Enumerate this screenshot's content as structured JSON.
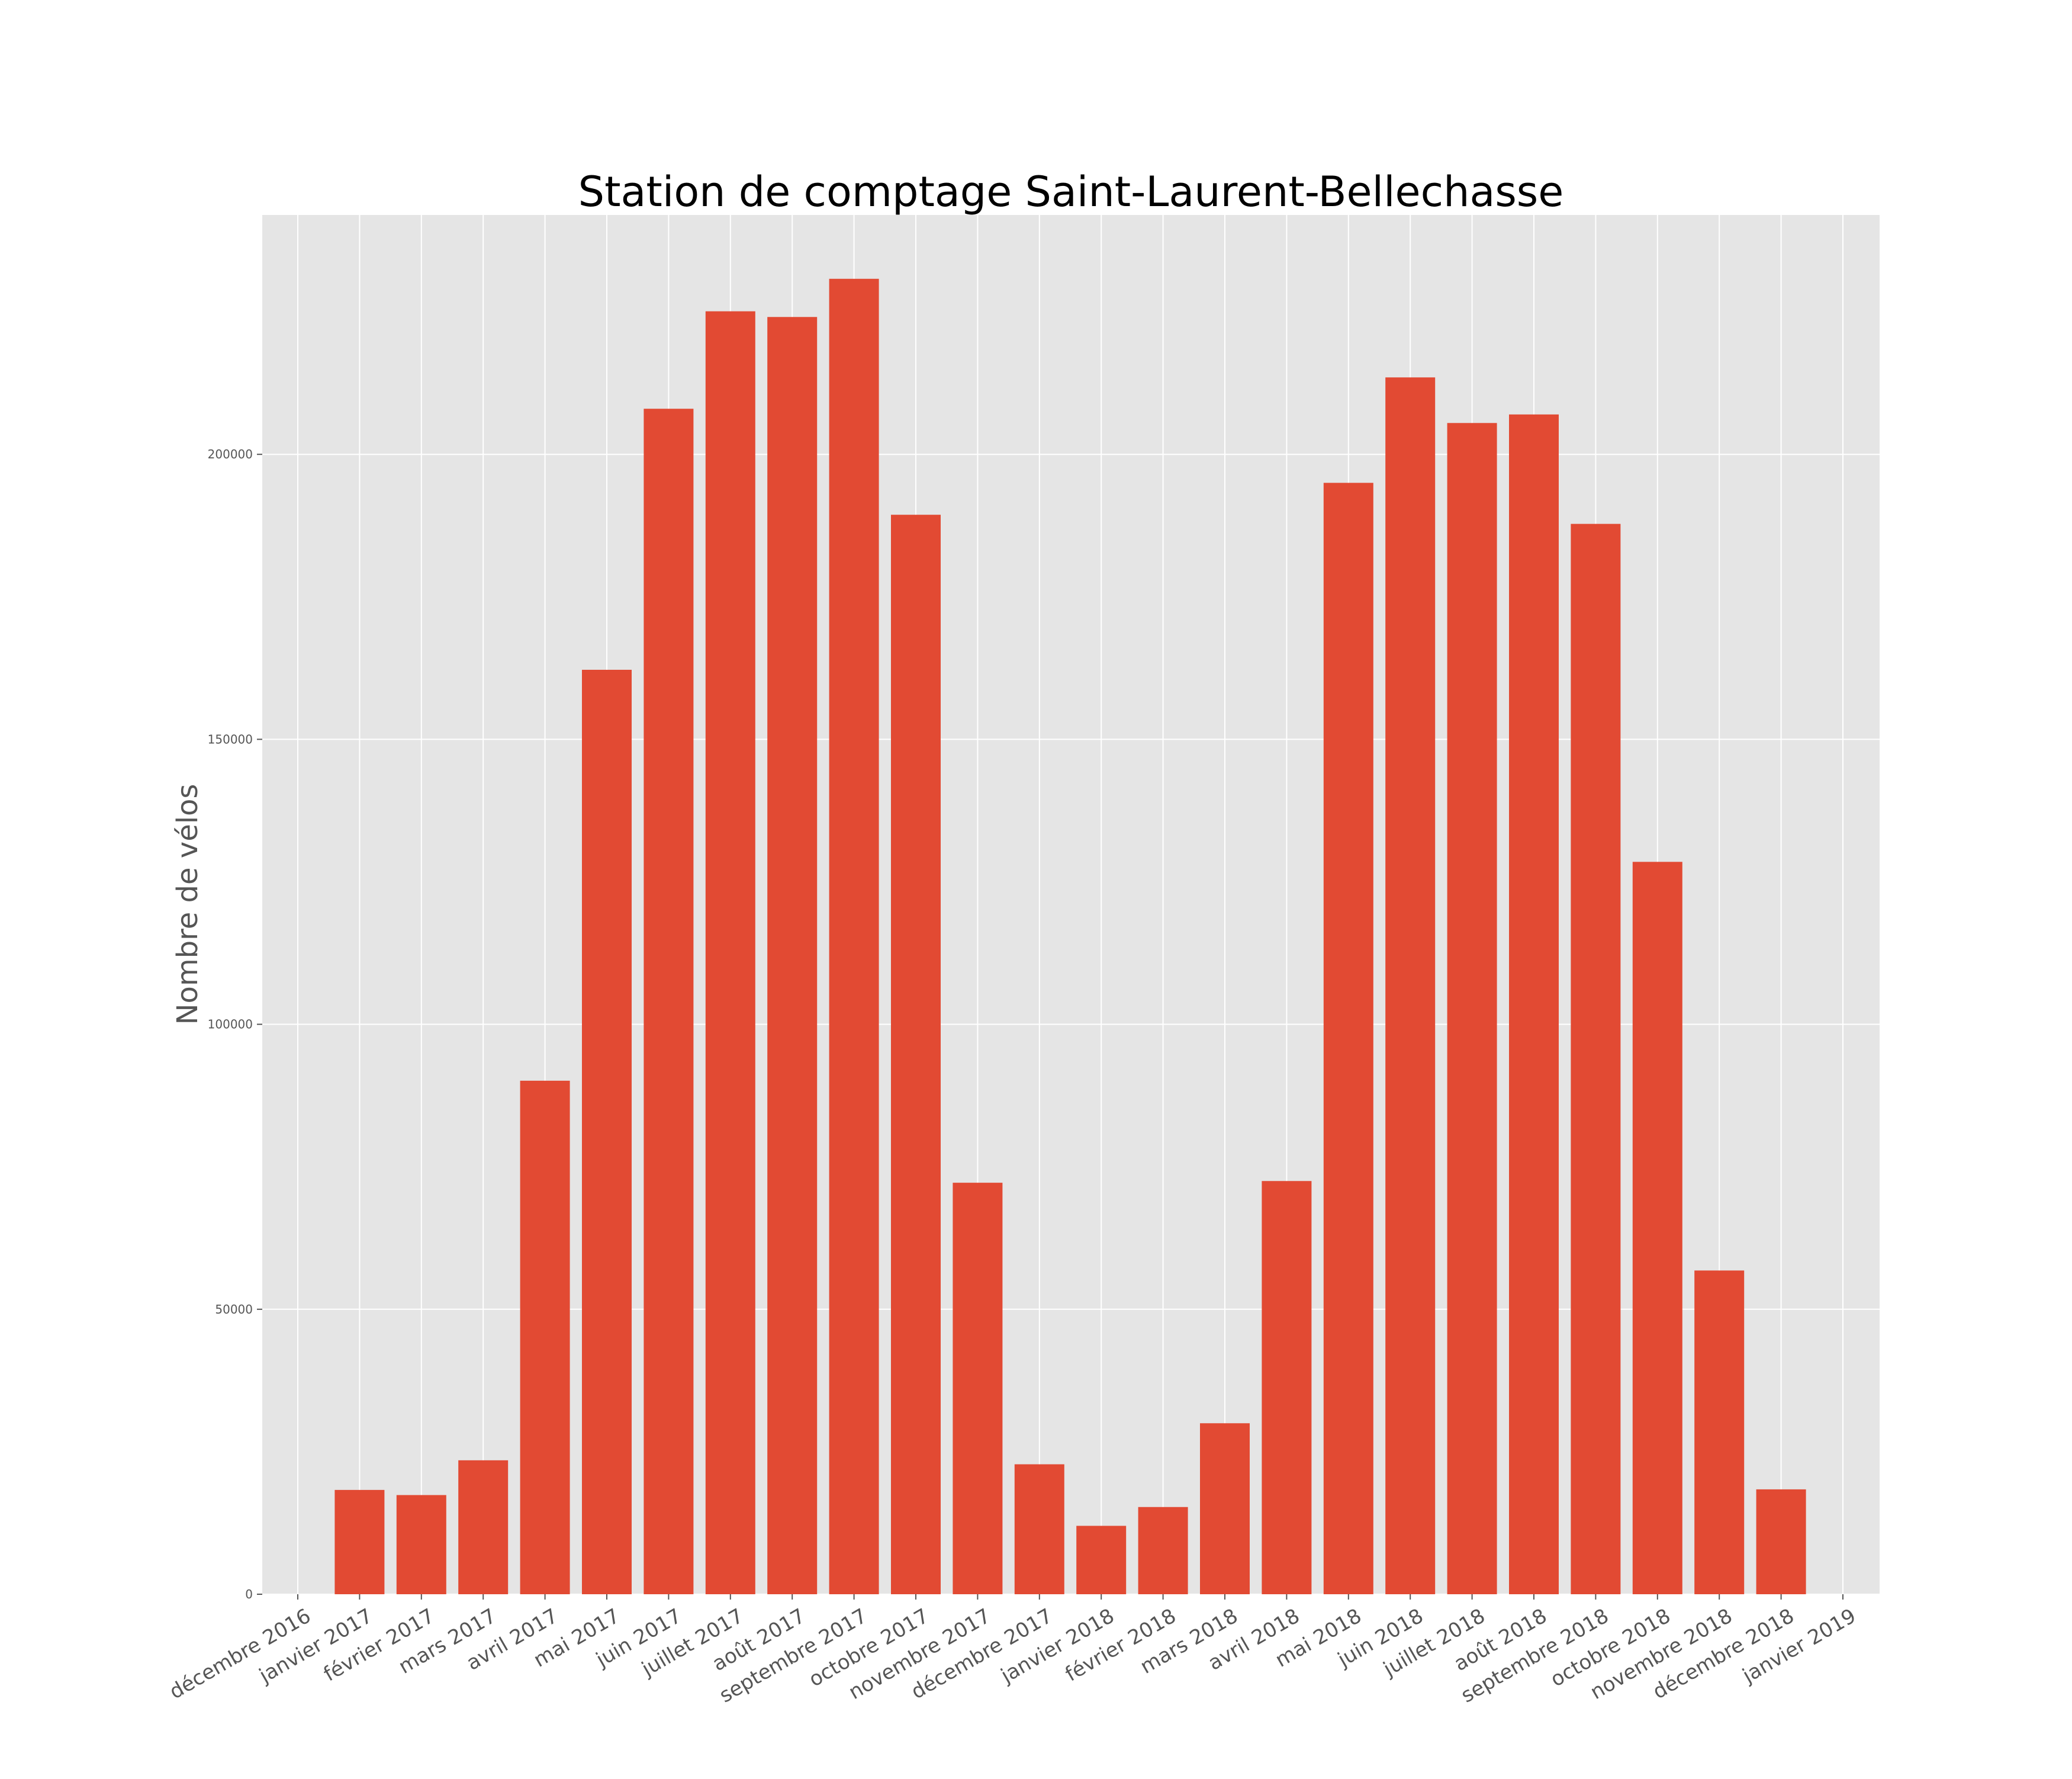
{
  "chart_data": {
    "type": "bar",
    "title": "Station de comptage Saint-Laurent-Bellechasse",
    "xlabel": "",
    "ylabel": "Nombre de vélos",
    "categories": [
      "décembre 2016",
      "janvier 2017",
      "février 2017",
      "mars 2017",
      "avril 2017",
      "mai 2017",
      "juin 2017",
      "juillet 2017",
      "août 2017",
      "septembre 2017",
      "octobre 2017",
      "novembre 2017",
      "décembre 2017",
      "janvier 2018",
      "février 2018",
      "mars 2018",
      "avril 2018",
      "mai 2018",
      "juin 2018",
      "juillet 2018",
      "août 2018",
      "septembre 2018",
      "octobre 2018",
      "novembre 2018",
      "décembre 2018",
      "janvier 2019"
    ],
    "values": [
      null,
      18300,
      17400,
      23500,
      90100,
      162200,
      208000,
      225100,
      224100,
      230800,
      189400,
      72200,
      22800,
      12000,
      15300,
      30000,
      72500,
      195000,
      213500,
      205500,
      207000,
      187800,
      128500,
      56800,
      18400,
      null
    ],
    "ylim": [
      0,
      242000
    ],
    "yticks": [
      0,
      50000,
      100000,
      150000,
      200000
    ],
    "ytick_labels": [
      "0",
      "50000",
      "100000",
      "150000",
      "200000"
    ],
    "grid": true,
    "colors": {
      "bar": "#E24A33",
      "plot_background": "#E5E5E5",
      "grid": "#FFFFFF",
      "text": "#555555",
      "title": "#000000"
    }
  }
}
